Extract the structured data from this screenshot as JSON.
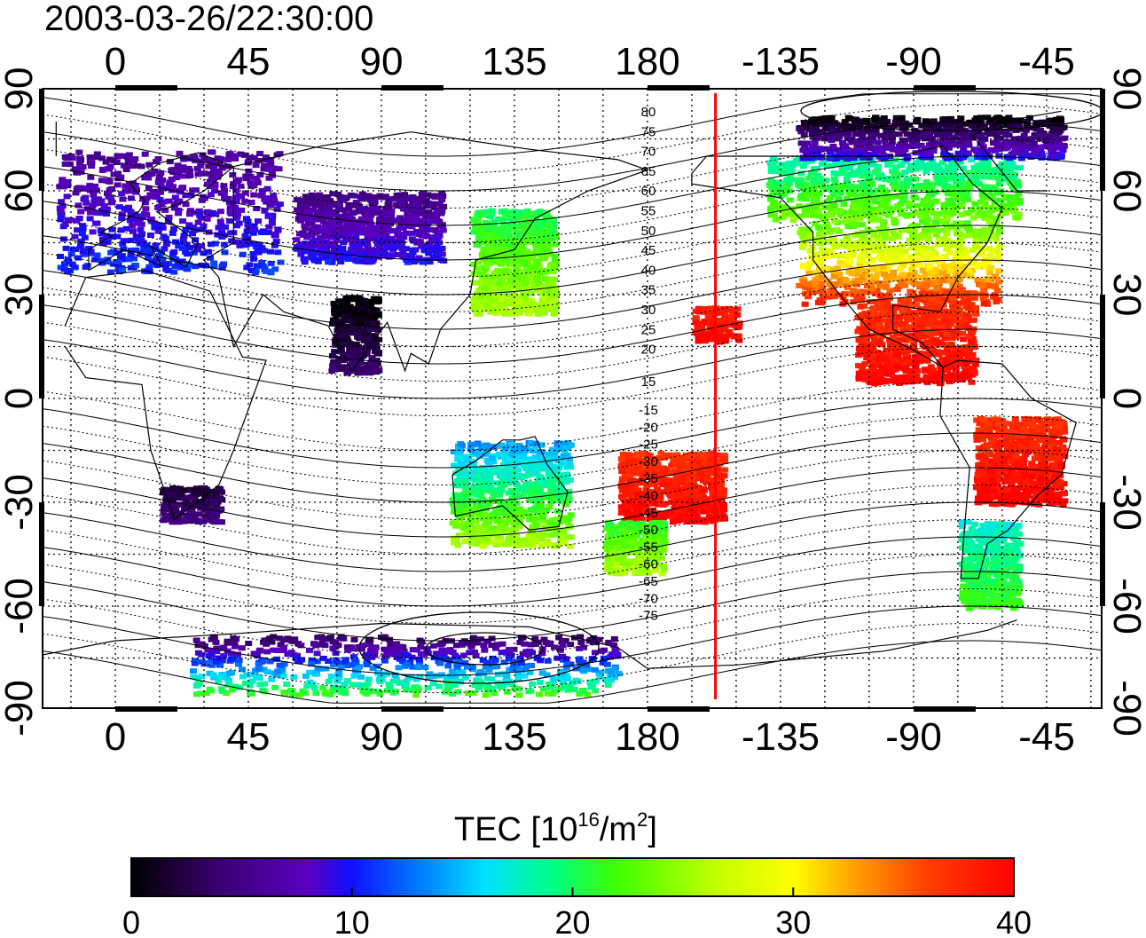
{
  "timestamp": "2003-03-26/22:30:00",
  "lon_labels": [
    "0",
    "45",
    "90",
    "135",
    "180",
    "-135",
    "-90",
    "-45"
  ],
  "lat_labels": [
    "90",
    "60",
    "30",
    "0",
    "-30",
    "-60",
    "-90"
  ],
  "maglat_north": [
    "80",
    "75",
    "70",
    "65",
    "60",
    "55",
    "50",
    "45",
    "40",
    "35",
    "30",
    "25",
    "20",
    "15"
  ],
  "maglat_south": [
    "-15",
    "-20",
    "-25",
    "-30",
    "-35",
    "-40",
    "-45",
    "-50",
    "-55",
    "-60",
    "-65",
    "-70",
    "-75"
  ],
  "colorbar": {
    "title_main": "TEC  [10",
    "title_exp1": "16",
    "title_mid": "/m",
    "title_exp2": "2",
    "title_end": "]",
    "tick_labels": [
      "0",
      "10",
      "20",
      "30",
      "40"
    ],
    "min": 0,
    "max": 40,
    "colors": [
      "#000000",
      "#3a0070",
      "#5a00c0",
      "#1010ff",
      "#0080ff",
      "#00e0ff",
      "#00ff80",
      "#40ff00",
      "#c0ff00",
      "#ffff00",
      "#ffa000",
      "#ff4000",
      "#ff0000"
    ]
  },
  "marker_line": {
    "longitude": -157,
    "color": "#ff0000"
  },
  "tec_regions": [
    {
      "name": "europe",
      "lon": [
        -20,
        55
      ],
      "lat": [
        37,
        72
      ],
      "tec": [
        6,
        11
      ]
    },
    {
      "name": "north-america",
      "lon": [
        -130,
        -62
      ],
      "lat": [
        28,
        52
      ],
      "tec": [
        22,
        38
      ]
    },
    {
      "name": "canada-north",
      "lon": [
        -140,
        -55
      ],
      "lat": [
        52,
        70
      ],
      "tec": [
        18,
        24
      ]
    },
    {
      "name": "arctic-canada",
      "lon": [
        -130,
        -40
      ],
      "lat": [
        70,
        82
      ],
      "tec": [
        0,
        10
      ]
    },
    {
      "name": "central-america",
      "lon": [
        -110,
        -70
      ],
      "lat": [
        5,
        28
      ],
      "tec": [
        37,
        40
      ]
    },
    {
      "name": "south-america",
      "lon": [
        -70,
        -40
      ],
      "lat": [
        -30,
        -5
      ],
      "tec": [
        37,
        40
      ]
    },
    {
      "name": "south-america-south",
      "lon": [
        -75,
        -55
      ],
      "lat": [
        -60,
        -35
      ],
      "tec": [
        17,
        22
      ]
    },
    {
      "name": "japan-china",
      "lon": [
        120,
        148
      ],
      "lat": [
        25,
        55
      ],
      "tec": [
        20,
        26
      ]
    },
    {
      "name": "hawaii",
      "lon": [
        -165,
        -150
      ],
      "lat": [
        17,
        27
      ],
      "tec": [
        38,
        40
      ]
    },
    {
      "name": "pacific-south",
      "lon": [
        170,
        205
      ],
      "lat": [
        -35,
        -15
      ],
      "tec": [
        37,
        40
      ]
    },
    {
      "name": "new-zealand",
      "lon": [
        165,
        185
      ],
      "lat": [
        -50,
        -35
      ],
      "tec": [
        21,
        26
      ]
    },
    {
      "name": "australia",
      "lon": [
        113,
        153
      ],
      "lat": [
        -42,
        -12
      ],
      "tec": [
        14,
        26
      ]
    },
    {
      "name": "south-africa",
      "lon": [
        15,
        35
      ],
      "lat": [
        -35,
        -25
      ],
      "tec": [
        2,
        5
      ]
    },
    {
      "name": "india",
      "lon": [
        72,
        88
      ],
      "lat": [
        8,
        30
      ],
      "tec": [
        0,
        4
      ]
    },
    {
      "name": "central-asia",
      "lon": [
        60,
        110
      ],
      "lat": [
        40,
        60
      ],
      "tec": [
        5,
        10
      ]
    },
    {
      "name": "antarctica",
      "lon": [
        25,
        170
      ],
      "lat": [
        -85,
        -68
      ],
      "tec": [
        3,
        22
      ]
    }
  ]
}
